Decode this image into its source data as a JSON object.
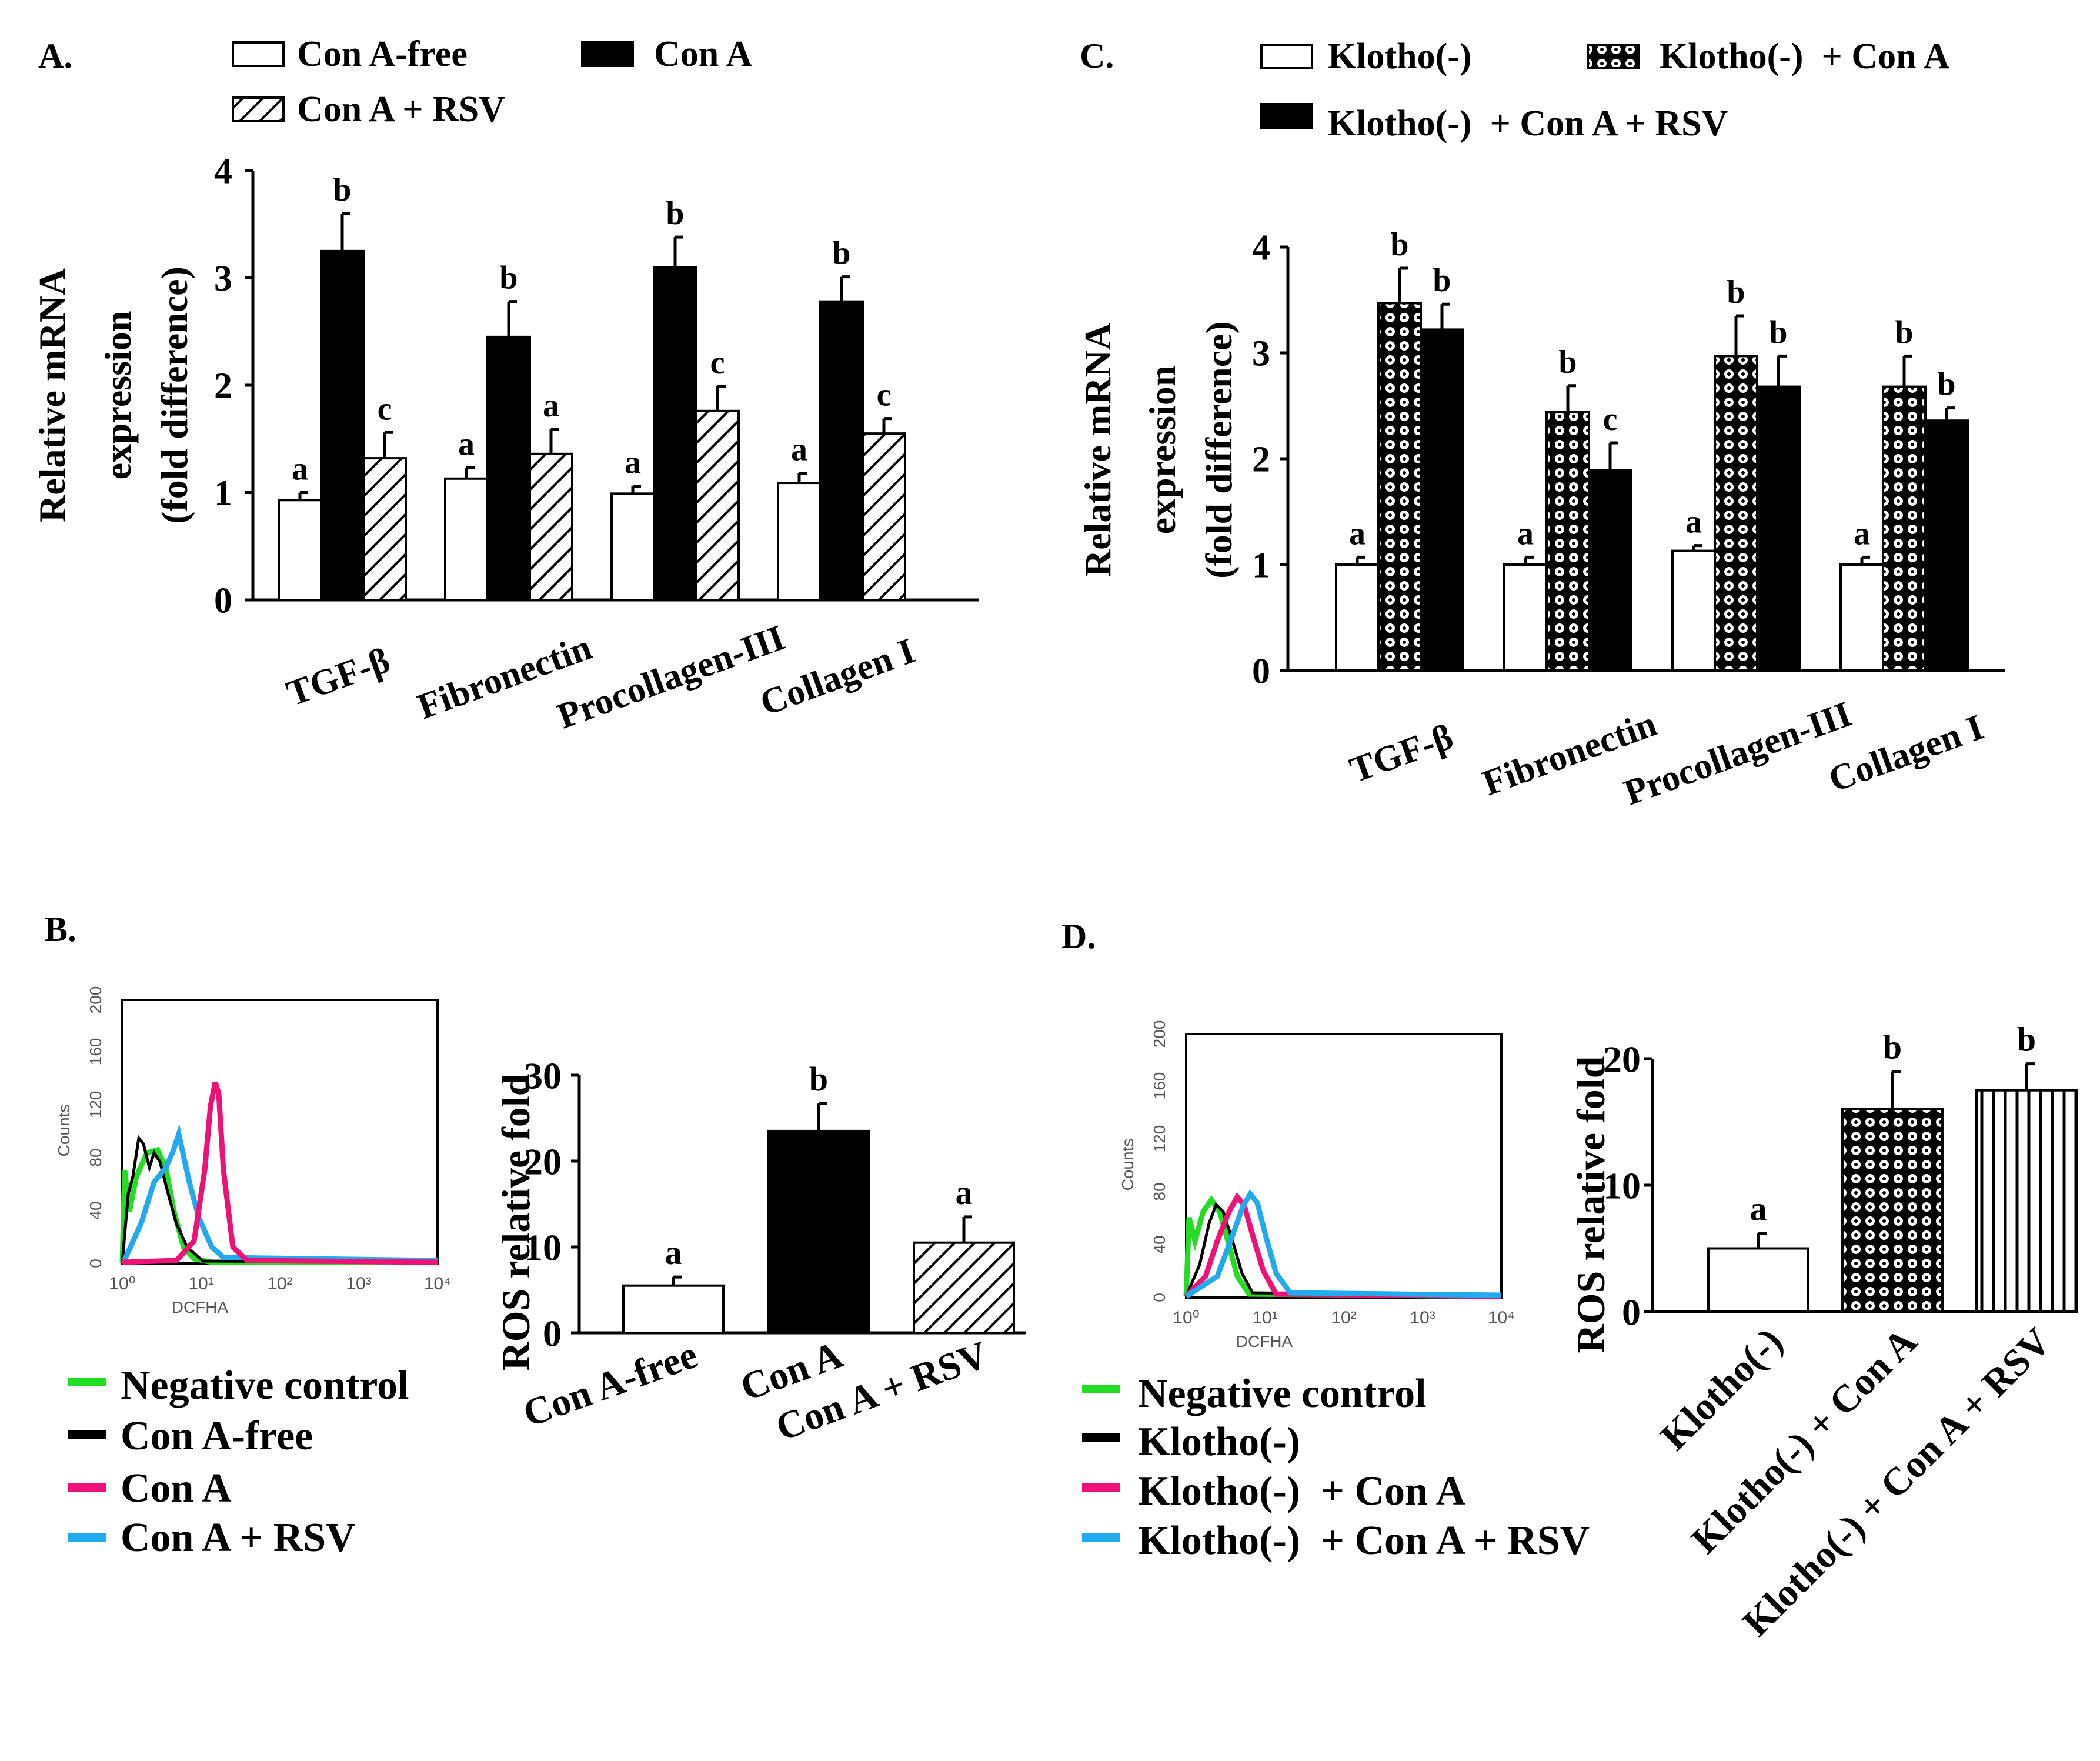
{
  "chart_data": [
    {
      "panel": "A.",
      "type": "bar",
      "ylabel_lines": [
        "Relative mRNA",
        "expression",
        "(fold difference)"
      ],
      "ylim": [
        0,
        4
      ],
      "yticks": [
        0,
        1,
        2,
        3,
        4
      ],
      "categories": [
        "TGF-β",
        "Fibronectin",
        "Procollagen-III",
        "Collagen I"
      ],
      "series": [
        {
          "name": "Con A-free",
          "fill": "white",
          "values": [
            0.93,
            1.13,
            0.99,
            1.09
          ],
          "errors": [
            0.07,
            0.1,
            0.07,
            0.09
          ],
          "letters": [
            "a",
            "a",
            "a",
            "a"
          ]
        },
        {
          "name": "Con A",
          "fill": "black",
          "values": [
            3.25,
            2.45,
            3.1,
            2.78
          ],
          "errors": [
            0.35,
            0.33,
            0.28,
            0.23
          ],
          "letters": [
            "b",
            "b",
            "b",
            "b"
          ]
        },
        {
          "name": "Con A + RSV",
          "fill": "hatch",
          "values": [
            1.32,
            1.36,
            1.76,
            1.55
          ],
          "errors": [
            0.24,
            0.23,
            0.23,
            0.14
          ],
          "letters": [
            "c",
            "a",
            "c",
            "c"
          ]
        }
      ]
    },
    {
      "panel": "C.",
      "type": "bar",
      "ylabel_lines": [
        "Relative mRNA",
        "expression",
        "(fold difference)"
      ],
      "ylim": [
        0,
        4
      ],
      "yticks": [
        0,
        1,
        2,
        3,
        4
      ],
      "categories": [
        "TGF-β",
        "Fibronectin",
        "Procollagen-III",
        "Collagen I"
      ],
      "series": [
        {
          "name": "Klotho(-)",
          "fill": "white",
          "values": [
            1.0,
            1.0,
            1.13,
            1.0
          ],
          "errors": [
            0.07,
            0.07,
            0.05,
            0.07
          ],
          "letters": [
            "a",
            "a",
            "a",
            "a"
          ]
        },
        {
          "name": "Klotho(-)  + Con A",
          "fill": "dots",
          "values": [
            3.47,
            2.44,
            2.97,
            2.68
          ],
          "errors": [
            0.33,
            0.25,
            0.38,
            0.29
          ],
          "letters": [
            "b",
            "b",
            "b",
            "b"
          ]
        },
        {
          "name": "Klotho(-)  + Con A + RSV",
          "fill": "black",
          "values": [
            3.22,
            1.89,
            2.68,
            2.36
          ],
          "errors": [
            0.24,
            0.26,
            0.29,
            0.12
          ],
          "letters": [
            "b",
            "c",
            "b",
            "b"
          ]
        }
      ]
    },
    {
      "panel": "B.",
      "type": "bar",
      "ylabel": "ROS relative fold",
      "ylim": [
        0,
        30
      ],
      "yticks": [
        0,
        10,
        20,
        30
      ],
      "categories": [
        "Con A-free",
        "Con A",
        "Con A + RSV"
      ],
      "values": [
        5.5,
        23.5,
        10.5
      ],
      "errors": [
        1.0,
        3.2,
        3.0
      ],
      "letters": [
        "a",
        "b",
        "a"
      ],
      "fills": [
        "white",
        "black",
        "hatch"
      ],
      "histogram": {
        "xlabel": "DCFHA",
        "ylabel": "Counts",
        "yticks": [
          "0",
          "40",
          "80",
          "120",
          "160",
          "200"
        ],
        "xticks": [
          "10⁰",
          "10¹",
          "10²",
          "10³",
          "10⁴"
        ],
        "legend": [
          {
            "label": "Negative control",
            "color": "#22dd22"
          },
          {
            "label": "Con A-free",
            "color": "#000000"
          },
          {
            "label": "Con A",
            "color": "#ee1177"
          },
          {
            "label": "Con A + RSV",
            "color": "#22aaee"
          }
        ]
      }
    },
    {
      "panel": "D.",
      "type": "bar",
      "ylabel": "ROS relative fold",
      "ylim": [
        0,
        20
      ],
      "yticks": [
        0,
        10,
        20
      ],
      "categories": [
        "Klotho(-)",
        "Klotho(-)  + Con A",
        "Klotho(-)  + Con A + RSV"
      ],
      "values": [
        5.0,
        16.0,
        17.5
      ],
      "errors": [
        1.2,
        3.0,
        2.1
      ],
      "letters": [
        "a",
        "b",
        "b"
      ],
      "fills": [
        "white",
        "dots",
        "vlines"
      ],
      "histogram": {
        "xlabel": "DCFHA",
        "ylabel": "Counts",
        "yticks": [
          "0",
          "40",
          "80",
          "120",
          "160",
          "200"
        ],
        "xticks": [
          "10⁰",
          "10¹",
          "10²",
          "10³",
          "10⁴"
        ],
        "legend": [
          {
            "label": "Negative control",
            "color": "#22dd22"
          },
          {
            "label": "Klotho(-)",
            "color": "#000000"
          },
          {
            "label": "Klotho(-)  + Con A",
            "color": "#ee1177"
          },
          {
            "label": "Klotho(-)  + Con A + RSV",
            "color": "#22aaee"
          }
        ]
      }
    }
  ]
}
